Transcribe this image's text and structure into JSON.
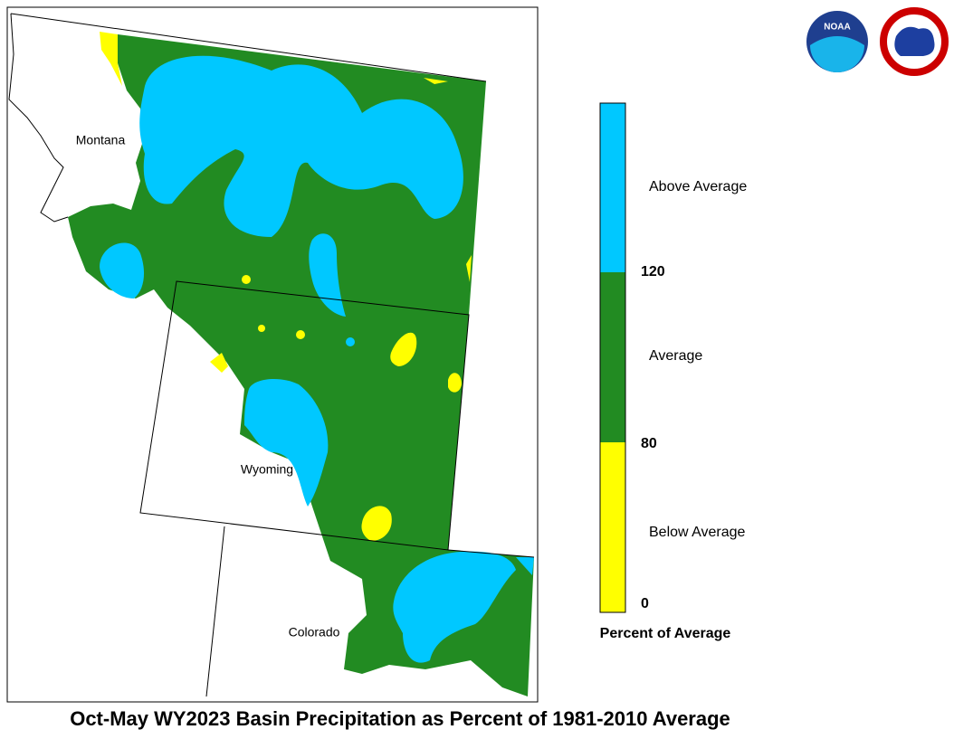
{
  "title": "Oct-May WY2023 Basin Precipitation as Percent of 1981-2010 Average",
  "states": [
    {
      "label": "Montana"
    },
    {
      "label": "Wyoming"
    },
    {
      "label": "Colorado"
    }
  ],
  "legend": {
    "title": "Percent of Average",
    "classes": [
      {
        "label": "Above Average",
        "color": "#00c8ff"
      },
      {
        "label": "Average",
        "color": "#228b22"
      },
      {
        "label": "Below Average",
        "color": "#ffff00"
      }
    ],
    "ticks": [
      120,
      80,
      0
    ]
  },
  "logos": [
    "NOAA",
    "NATIONAL WEATHER SERVICE"
  ]
}
